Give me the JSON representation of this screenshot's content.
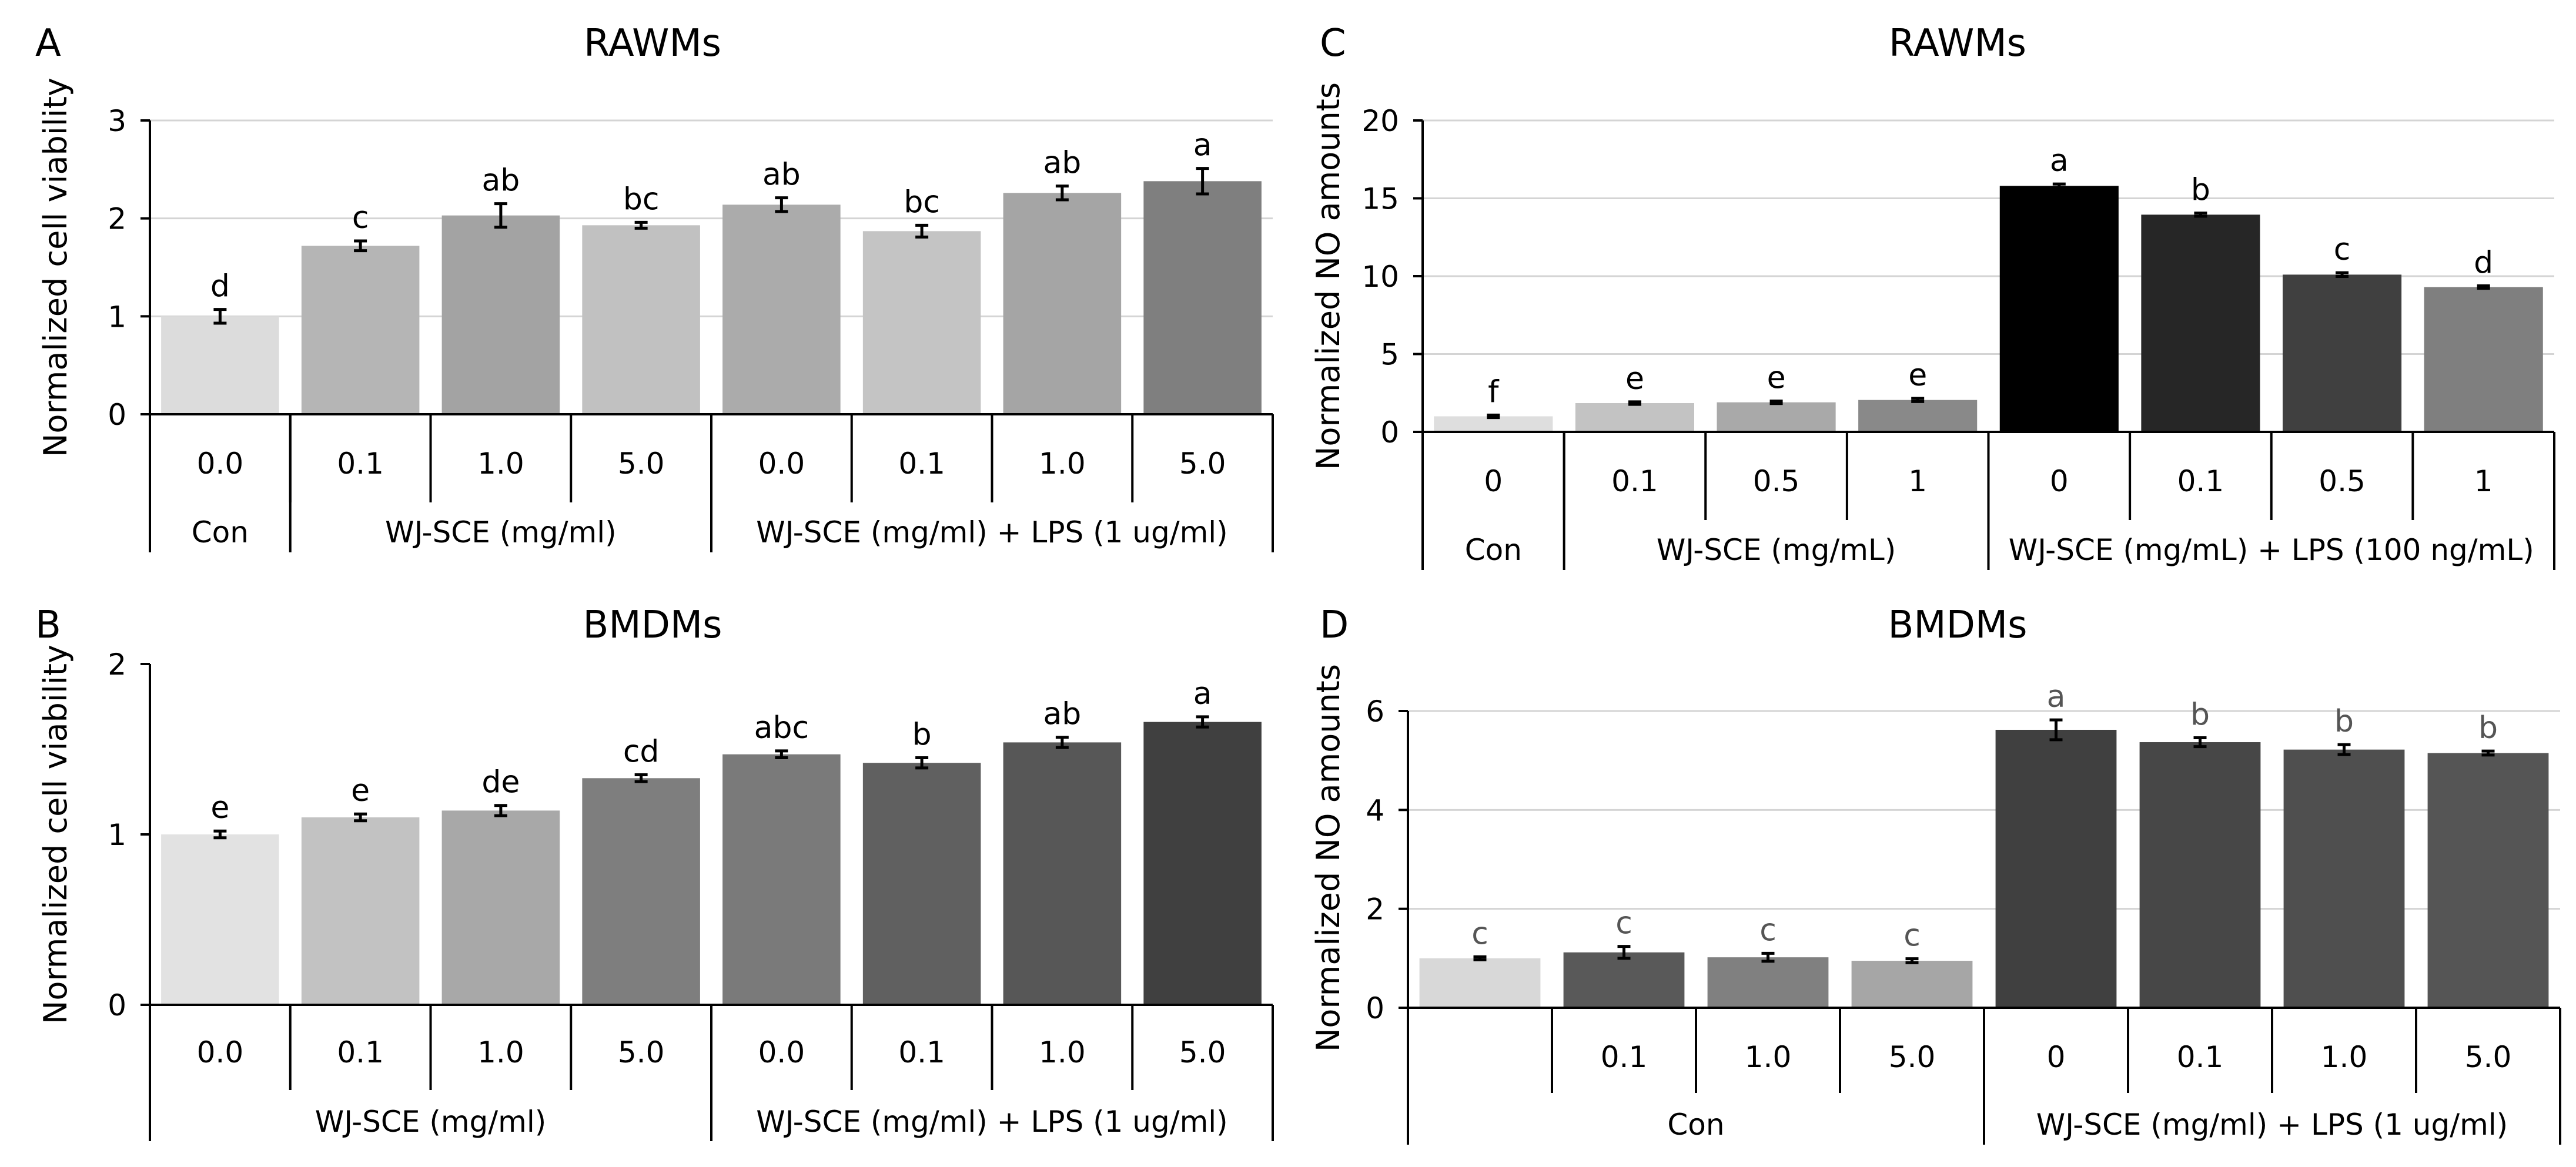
{
  "chart_data": [
    {
      "panel": "A",
      "type": "bar",
      "title": "RAWMs",
      "ylabel": "Normalized cell viability",
      "ylim": [
        0,
        3
      ],
      "yticks": [
        "0",
        "1",
        "2",
        "3"
      ],
      "gridlines": true,
      "categories": [
        "0.0",
        "0.1",
        "1.0",
        "5.0",
        "0.0",
        "0.1",
        "1.0",
        "5.0"
      ],
      "values": [
        1.0,
        1.72,
        2.03,
        1.93,
        2.14,
        1.87,
        2.26,
        2.38
      ],
      "errors": [
        0.07,
        0.05,
        0.12,
        0.03,
        0.07,
        0.06,
        0.07,
        0.13
      ],
      "sig_labels": [
        "d",
        "c",
        "ab",
        "bc",
        "ab",
        "bc",
        "ab",
        "a"
      ],
      "colors": [
        "#dcdcdc",
        "#b5b5b5",
        "#a3a3a3",
        "#c1c1c1",
        "#ababab",
        "#c4c4c4",
        "#a5a5a5",
        "#7f7f7f"
      ],
      "groups": [
        {
          "label": "Con",
          "span": 1
        },
        {
          "label": "WJ-SCE (mg/ml)",
          "span": 3
        },
        {
          "label": "WJ-SCE (mg/ml) + LPS (1 ug/ml)",
          "span": 4
        }
      ]
    },
    {
      "panel": "B",
      "type": "bar",
      "title": "BMDMs",
      "ylabel": "Normalized cell viability",
      "ylim": [
        0,
        2
      ],
      "yticks": [
        "0",
        "1",
        "2"
      ],
      "gridlines": false,
      "categories": [
        "0.0",
        "0.1",
        "1.0",
        "5.0",
        "0.0",
        "0.1",
        "1.0",
        "5.0"
      ],
      "values": [
        1.0,
        1.1,
        1.14,
        1.33,
        1.47,
        1.42,
        1.54,
        1.66
      ],
      "errors": [
        0.02,
        0.02,
        0.03,
        0.02,
        0.02,
        0.03,
        0.03,
        0.03
      ],
      "sig_labels": [
        "e",
        "e",
        "de",
        "cd",
        "abc",
        "b",
        "ab",
        "a"
      ],
      "colors": [
        "#e2e2e2",
        "#c2c2c2",
        "#a8a8a8",
        "#7e7e7e",
        "#7a7a7a",
        "#606060",
        "#575757",
        "#404040"
      ],
      "groups": [
        {
          "label": "WJ-SCE (mg/ml)",
          "span": 4
        },
        {
          "label": "WJ-SCE (mg/ml) + LPS (1 ug/ml)",
          "span": 4
        }
      ]
    },
    {
      "panel": "C",
      "type": "bar",
      "title": "RAWMs",
      "ylabel": "Normalized NO amounts",
      "ylim": [
        0,
        20
      ],
      "yticks": [
        "0",
        "5",
        "10",
        "15",
        "20"
      ],
      "gridlines": true,
      "categories": [
        "0",
        "0.1",
        "0.5",
        "1",
        "0",
        "0.1",
        "0.5",
        "1"
      ],
      "values": [
        1.0,
        1.85,
        1.9,
        2.05,
        15.8,
        13.95,
        10.1,
        9.3
      ],
      "errors": [
        0.08,
        0.08,
        0.08,
        0.1,
        0.12,
        0.1,
        0.12,
        0.08
      ],
      "sig_labels": [
        "f",
        "e",
        "e",
        "e",
        "a",
        "b",
        "c",
        "d"
      ],
      "colors": [
        "#dedede",
        "#c3c3c3",
        "#a9a9a9",
        "#898989",
        "#000000",
        "#262626",
        "#404040",
        "#7f7f7f"
      ],
      "groups": [
        {
          "label": "Con",
          "span": 1
        },
        {
          "label": "WJ-SCE (mg/mL)",
          "span": 3
        },
        {
          "label": "WJ-SCE (mg/mL) + LPS (100 ng/mL)",
          "span": 4
        }
      ]
    },
    {
      "panel": "D",
      "type": "bar",
      "title": "BMDMs",
      "ylabel": "Normalized NO amounts",
      "ylim": [
        0,
        6
      ],
      "yticks": [
        "0",
        "2",
        "4",
        "6"
      ],
      "gridlines": true,
      "categories": [
        "",
        "0.1",
        "1.0",
        "5.0",
        "0",
        "0.1",
        "1.0",
        "5.0"
      ],
      "values": [
        1.0,
        1.12,
        1.02,
        0.95,
        5.62,
        5.37,
        5.22,
        5.15
      ],
      "errors": [
        0.03,
        0.12,
        0.08,
        0.04,
        0.2,
        0.09,
        0.1,
        0.04
      ],
      "sig_labels": [
        "c",
        "c",
        "c",
        "c",
        "a",
        "b",
        "b",
        "b"
      ],
      "colors": [
        "#d8d8d8",
        "#595959",
        "#808080",
        "#a6a6a6",
        "#404040",
        "#474747",
        "#4f4f4f",
        "#555555"
      ],
      "groups": [
        {
          "label": "Con",
          "span": 4
        },
        {
          "label": "WJ-SCE (mg/ml) + LPS (1 ug/ml)",
          "span": 4
        }
      ]
    }
  ]
}
